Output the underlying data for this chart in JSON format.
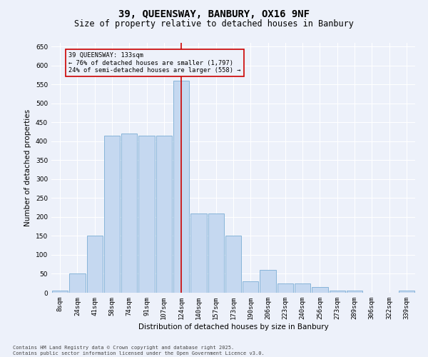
{
  "title": "39, QUEENSWAY, BANBURY, OX16 9NF",
  "subtitle": "Size of property relative to detached houses in Banbury",
  "xlabel": "Distribution of detached houses by size in Banbury",
  "ylabel": "Number of detached properties",
  "categories": [
    "8sqm",
    "24sqm",
    "41sqm",
    "58sqm",
    "74sqm",
    "91sqm",
    "107sqm",
    "124sqm",
    "140sqm",
    "157sqm",
    "173sqm",
    "190sqm",
    "206sqm",
    "223sqm",
    "240sqm",
    "256sqm",
    "273sqm",
    "289sqm",
    "306sqm",
    "322sqm",
    "339sqm"
  ],
  "values": [
    5,
    50,
    150,
    415,
    420,
    415,
    415,
    560,
    210,
    210,
    150,
    30,
    60,
    25,
    25,
    15,
    5,
    5,
    0,
    0,
    5
  ],
  "bar_color": "#c5d8f0",
  "bar_edge_color": "#7aadd4",
  "vline_x_index": 7,
  "vline_color": "#cc0000",
  "annotation_text": "39 QUEENSWAY: 133sqm\n← 76% of detached houses are smaller (1,797)\n24% of semi-detached houses are larger (558) →",
  "annotation_box_color": "#cc0000",
  "ylim": [
    0,
    660
  ],
  "yticks": [
    0,
    50,
    100,
    150,
    200,
    250,
    300,
    350,
    400,
    450,
    500,
    550,
    600,
    650
  ],
  "footer": "Contains HM Land Registry data © Crown copyright and database right 2025.\nContains public sector information licensed under the Open Government Licence v3.0.",
  "bg_color": "#edf1fa",
  "grid_color": "#ffffff",
  "title_fontsize": 10,
  "subtitle_fontsize": 8.5,
  "label_fontsize": 7.5,
  "tick_fontsize": 6.5,
  "footer_fontsize": 5.0
}
